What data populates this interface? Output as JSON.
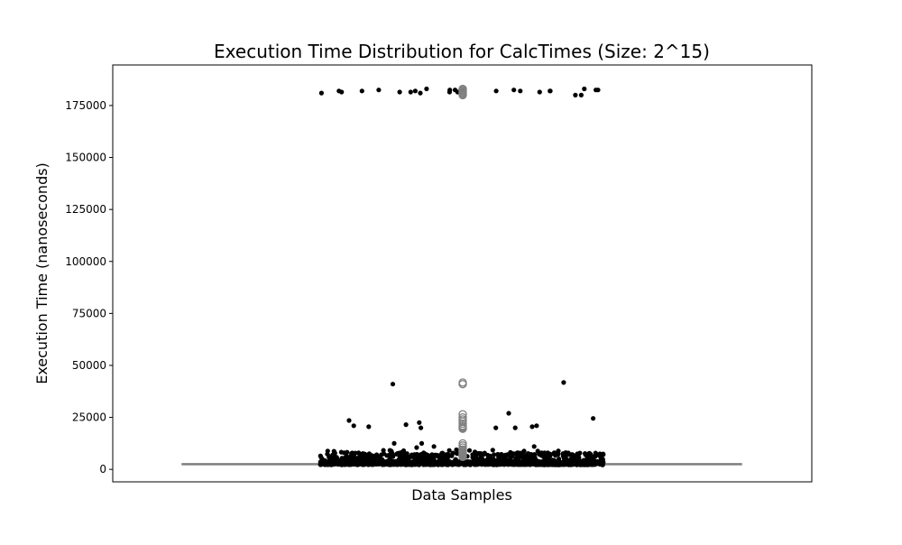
{
  "chart_data": {
    "type": "scatter",
    "subtype": "boxplot-with-strip",
    "title": "Execution Time Distribution for CalcTimes (Size: 2^15)",
    "xlabel": "Data Samples",
    "ylabel": "Execution Time (nanoseconds)",
    "ylim": [
      -6000,
      194500
    ],
    "yticks": [
      0,
      25000,
      50000,
      75000,
      100000,
      125000,
      150000,
      175000
    ],
    "ytick_labels": [
      "0",
      "25000",
      "50000",
      "75000",
      "100000",
      "125000",
      "150000",
      "175000"
    ],
    "grid": false,
    "legend": "none",
    "colors": {
      "strip_points": "#000000",
      "box": "#808080",
      "outlier_edge": "#808080",
      "background": "#ffffff"
    },
    "box": {
      "min": 1500,
      "q1": 2500,
      "median": 2600,
      "q3": 2700,
      "whisker_low": 1800,
      "whisker_high": 3000,
      "outliers": [
        180000,
        180500,
        181000,
        181500,
        182000,
        182500,
        183000,
        41000,
        41800,
        26500,
        25000,
        24000,
        23000,
        22000,
        21000,
        20500,
        20000,
        19500,
        12500,
        11500,
        10500,
        9500,
        9000,
        8500,
        8000,
        7500,
        7000,
        6500,
        6000
      ]
    },
    "strip_points": {
      "high_cluster": [
        180000,
        182000,
        182500,
        181500,
        182000,
        182000,
        182500,
        183000,
        182000,
        181500,
        182000,
        183000,
        181500,
        182500,
        182000,
        181500,
        181000,
        182500,
        181500,
        182500,
        181500,
        182500,
        182000,
        180000,
        182000,
        181000
      ],
      "mid_outliers": [
        41800,
        41000,
        27000,
        23500,
        20000,
        20500,
        24500,
        21500,
        21000,
        11000,
        12500,
        11000,
        21000,
        20000,
        12500,
        10500,
        20500,
        22500,
        20000
      ],
      "dense_band_range": [
        1500,
        9500
      ]
    }
  }
}
